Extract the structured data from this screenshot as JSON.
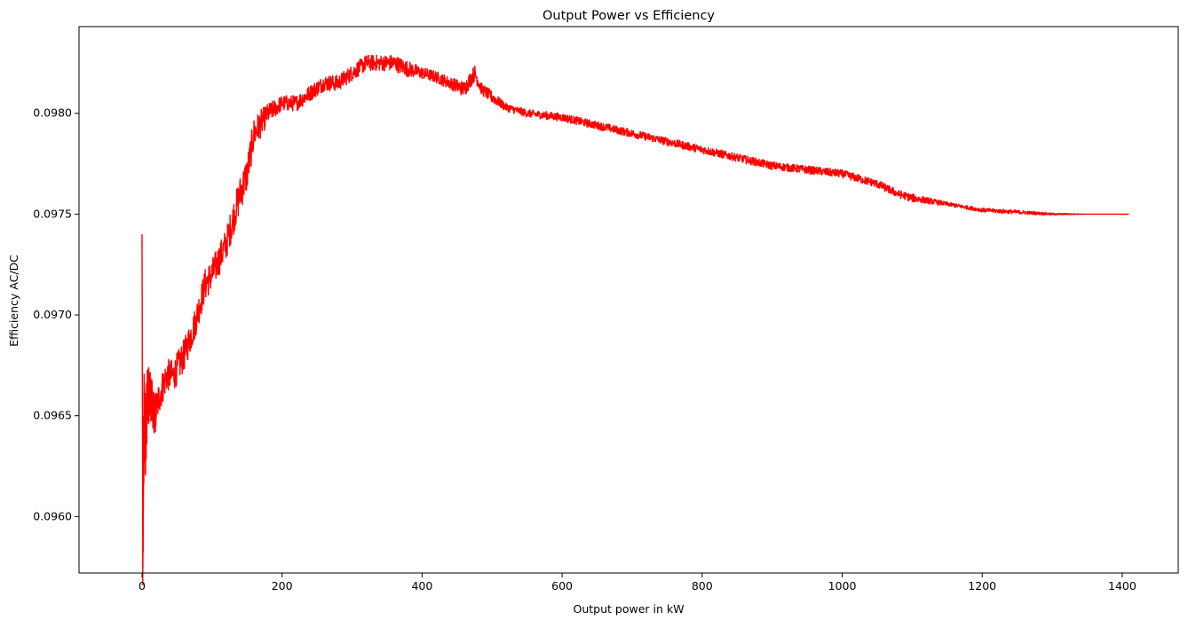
{
  "chart_data": {
    "type": "line",
    "title": "Output Power vs Efficiency",
    "xlabel": "Output power in kW",
    "ylabel": "Efficiency AC/DC",
    "xlim": [
      -90,
      1480
    ],
    "ylim": [
      0.09572,
      0.09843
    ],
    "x_ticks": [
      0,
      200,
      400,
      600,
      800,
      1000,
      1200,
      1400
    ],
    "x_tick_labels": [
      "0",
      "200",
      "400",
      "600",
      "800",
      "1000",
      "1200",
      "1400"
    ],
    "y_ticks": [
      0.096,
      0.0965,
      0.097,
      0.0975,
      0.098
    ],
    "y_tick_labels": [
      "0.0960",
      "0.0965",
      "0.0970",
      "0.0975",
      "0.0980"
    ],
    "grid": false,
    "legend": "none",
    "series": [
      {
        "color": "#ff0000",
        "x": [
          0,
          1,
          2,
          3,
          5,
          8,
          12,
          18,
          25,
          35,
          45,
          60,
          75,
          90,
          100,
          120,
          140,
          150,
          160,
          170,
          180,
          200,
          220,
          240,
          260,
          280,
          300,
          320,
          340,
          360,
          380,
          400,
          420,
          440,
          460,
          475,
          485,
          500,
          520,
          550,
          600,
          650,
          700,
          750,
          800,
          850,
          900,
          950,
          1000,
          1050,
          1080,
          1100,
          1150,
          1200,
          1250,
          1300,
          1350,
          1410
        ],
        "y": [
          0.0974,
          0.0958,
          0.0962,
          0.0965,
          0.0964,
          0.0966,
          0.0966,
          0.0965,
          0.0966,
          0.0967,
          0.0967,
          0.0968,
          0.09695,
          0.09715,
          0.0972,
          0.09735,
          0.0976,
          0.0977,
          0.0979,
          0.09795,
          0.098,
          0.09805,
          0.09805,
          0.0981,
          0.09815,
          0.09815,
          0.0982,
          0.09825,
          0.09825,
          0.09825,
          0.09822,
          0.0982,
          0.09818,
          0.09815,
          0.09812,
          0.0982,
          0.09812,
          0.09808,
          0.09803,
          0.098,
          0.09798,
          0.09794,
          0.0979,
          0.09786,
          0.09782,
          0.09778,
          0.09774,
          0.09772,
          0.0977,
          0.09765,
          0.0976,
          0.09758,
          0.09755,
          0.09752,
          0.09751,
          0.0975,
          0.0975,
          0.0975
        ],
        "noise": [
          0,
          0.00025,
          0.0003,
          0.00025,
          0.0002,
          0.00015,
          0.00012,
          0.0001,
          9e-05,
          8e-05,
          8e-05,
          8e-05,
          8e-05,
          8e-05,
          8e-05,
          8e-05,
          9e-05,
          9e-05,
          8e-05,
          7e-05,
          5e-05,
          4e-05,
          4e-05,
          4e-05,
          4e-05,
          4e-05,
          4e-05,
          4e-05,
          4e-05,
          4e-05,
          4e-05,
          3e-05,
          3e-05,
          3e-05,
          4e-05,
          4e-05,
          3e-05,
          3e-05,
          2e-05,
          2e-05,
          2e-05,
          2e-05,
          2e-05,
          2e-05,
          2e-05,
          2e-05,
          2e-05,
          2e-05,
          2e-05,
          2e-05,
          2e-05,
          2e-05,
          1e-05,
          1e-05,
          1e-05,
          5e-06,
          0,
          0
        ]
      }
    ]
  }
}
